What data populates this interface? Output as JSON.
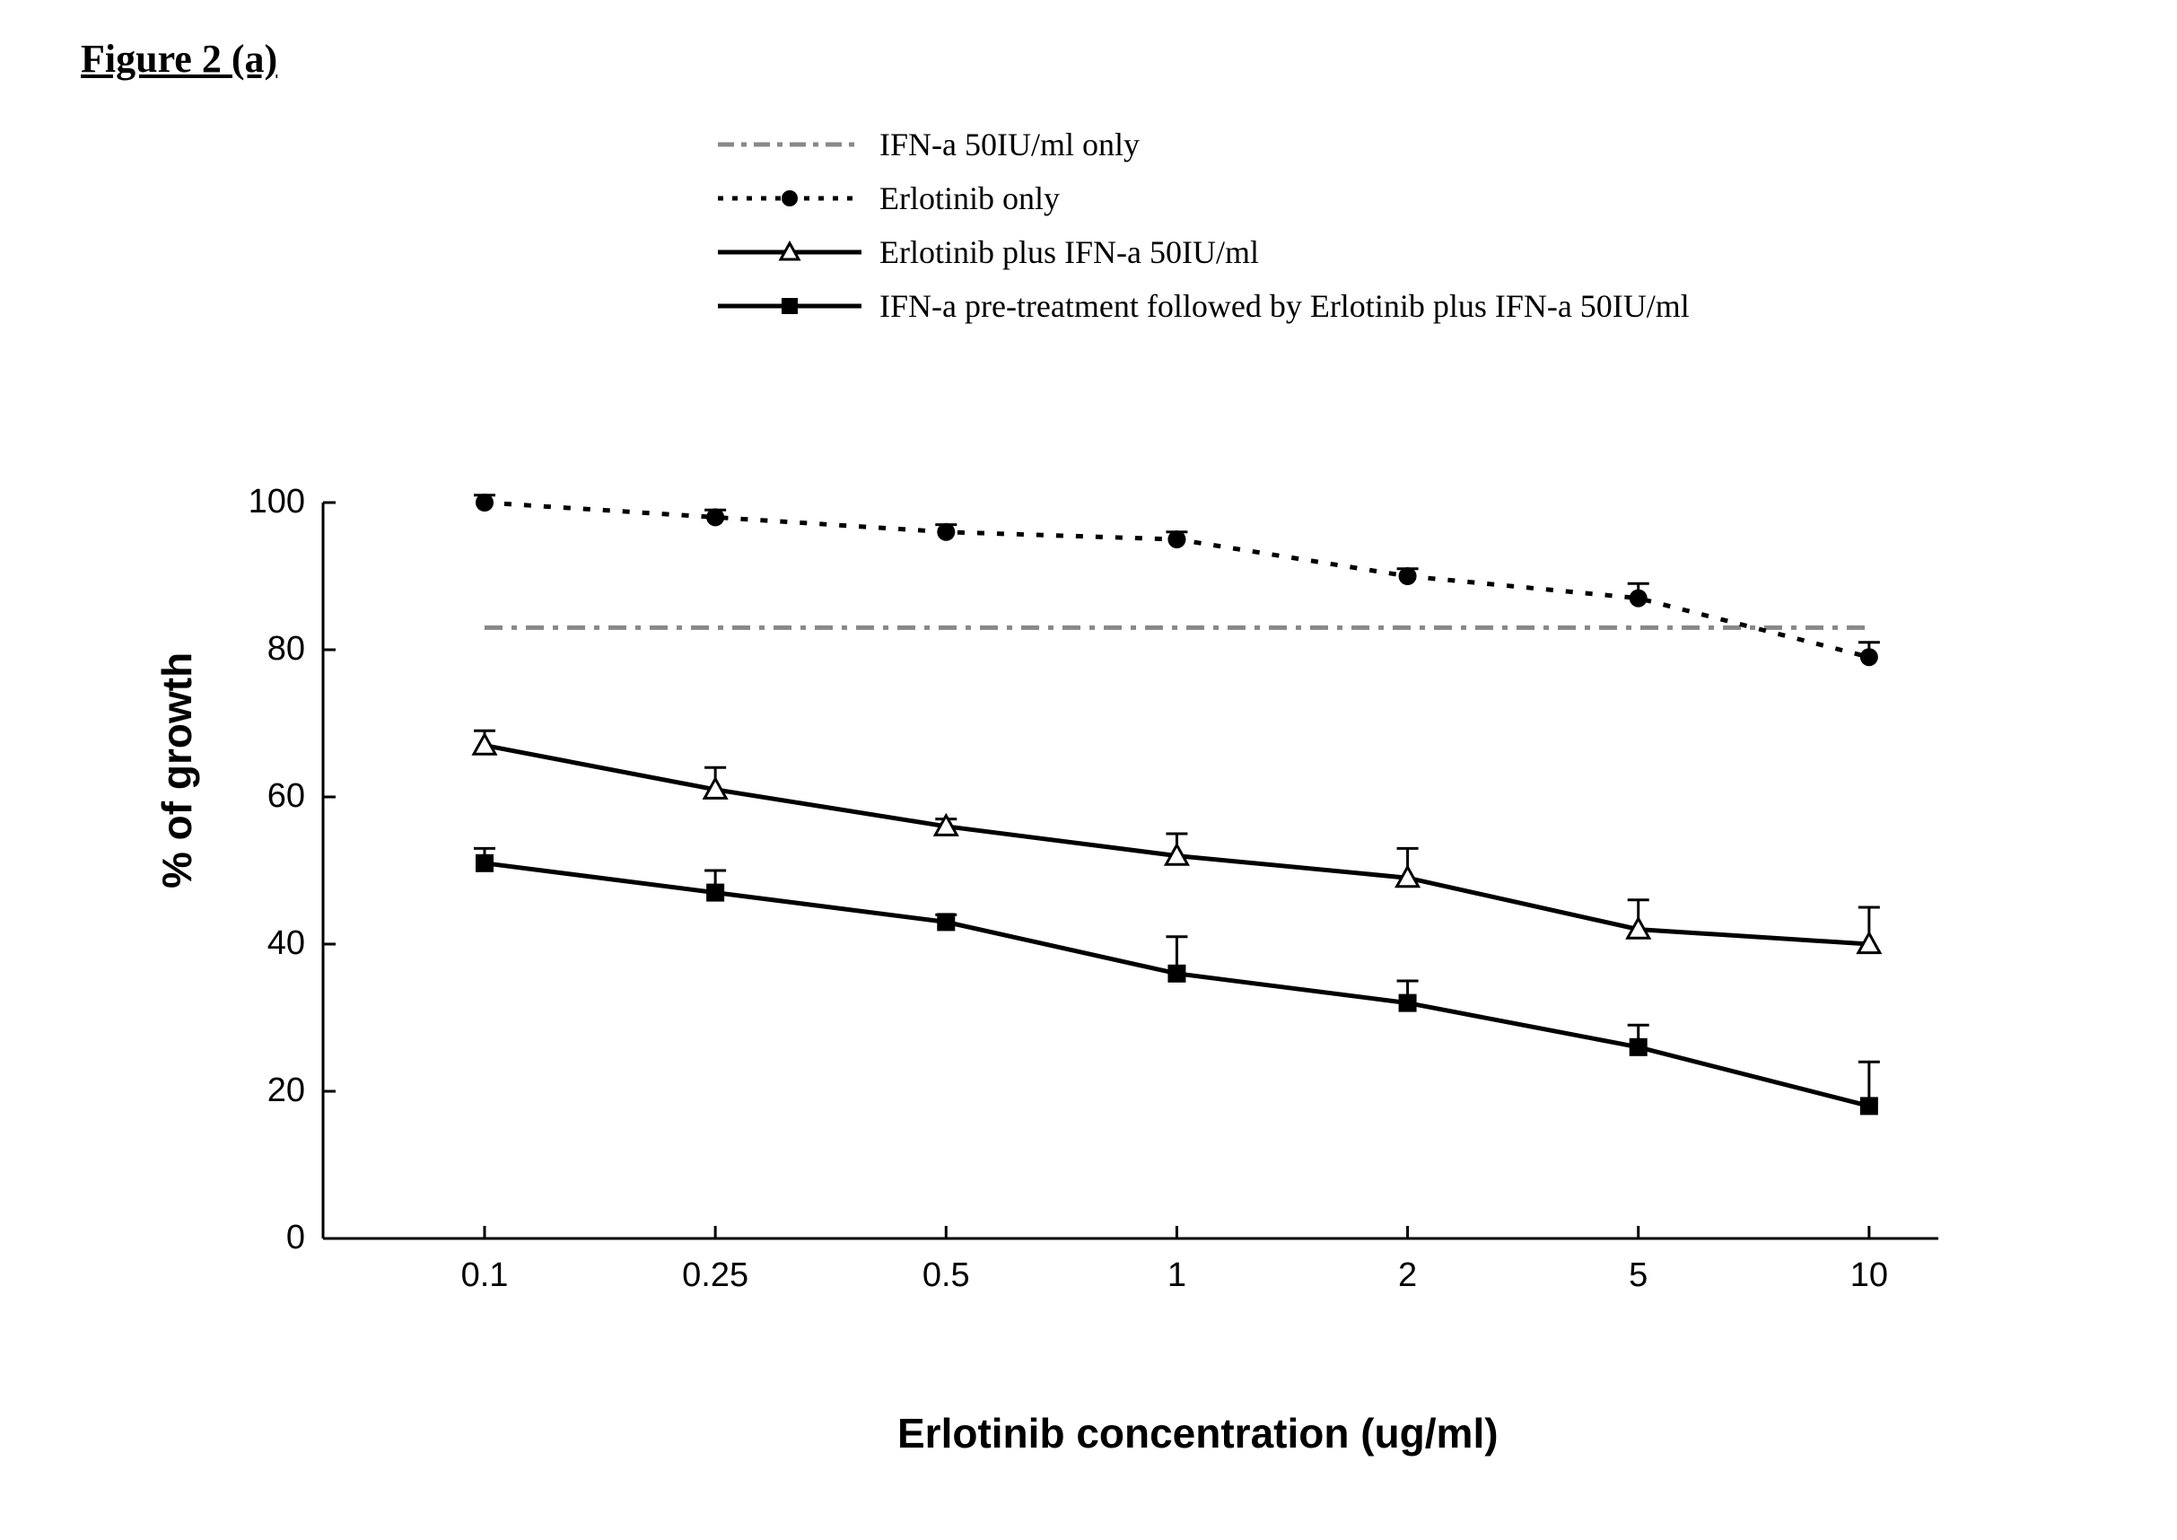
{
  "figure_title": "Figure 2 (a)",
  "chart": {
    "type": "line",
    "background_color": "#ffffff",
    "axis_color": "#000000",
    "line_width": 4,
    "marker_size": 10,
    "x_axis": {
      "title": "Erlotinib concentration (ug/ml)",
      "categories": [
        "0.1",
        "0.25",
        "0.5",
        "1",
        "2",
        "5",
        "10"
      ],
      "title_fontsize": 46
    },
    "y_axis": {
      "title": "% of growth",
      "min": 0,
      "max": 100,
      "tick_step": 20,
      "ticks": [
        0,
        20,
        40,
        60,
        80,
        100
      ],
      "title_fontsize": 46
    },
    "series": [
      {
        "id": "ifn_only",
        "label": "IFN-a 50IU/ml only",
        "style": "dash-dot",
        "marker": "none",
        "color": "#888888",
        "values": [
          83,
          83,
          83,
          83,
          83,
          83,
          83
        ],
        "errors": [
          0,
          0,
          0,
          0,
          0,
          0,
          0
        ]
      },
      {
        "id": "erlotinib_only",
        "label": "Erlotinib only",
        "style": "dotted",
        "marker": "circle-filled",
        "color": "#000000",
        "values": [
          100,
          98,
          96,
          95,
          90,
          87,
          79
        ],
        "errors": [
          1,
          1,
          1,
          1,
          1,
          2,
          2
        ]
      },
      {
        "id": "erlotinib_plus_ifn",
        "label": "Erlotinib plus IFN-a 50IU/ml",
        "style": "solid",
        "marker": "triangle-open",
        "color": "#000000",
        "values": [
          67,
          61,
          56,
          52,
          49,
          42,
          40
        ],
        "errors": [
          2,
          3,
          1,
          3,
          4,
          4,
          5
        ]
      },
      {
        "id": "ifn_pretreat",
        "label": "IFN-a pre-treatment followed by Erlotinib plus IFN-a 50IU/ml",
        "style": "solid",
        "marker": "square-filled",
        "color": "#000000",
        "values": [
          51,
          47,
          43,
          36,
          32,
          26,
          18
        ],
        "errors": [
          2,
          3,
          1,
          5,
          3,
          3,
          6
        ]
      }
    ]
  }
}
